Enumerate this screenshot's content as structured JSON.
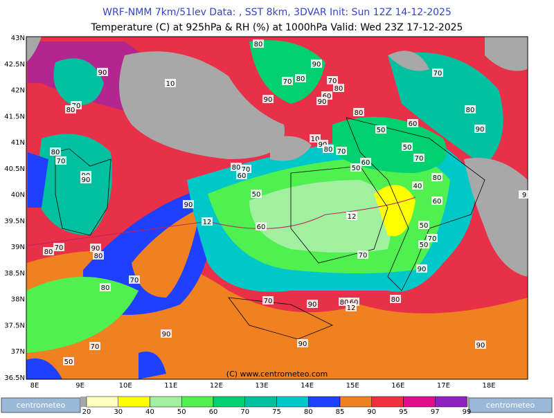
{
  "header": {
    "line1": "WRF-NMM 7km/51lev   Data: , SST 8km, 3DVAR   Init: Sun 12Z 14-12-2025",
    "line2": "Temperature (C) at 925hPa & RH (%) at 1000hPa  Valid: Wed 23Z 17-12-2025"
  },
  "map": {
    "lat_labels": [
      "43N",
      "42.5N",
      "42N",
      "41.5N",
      "41N",
      "40.5N",
      "40N",
      "39.5N",
      "39N",
      "38.5N",
      "38N",
      "37.5N",
      "37N",
      "36.5N"
    ],
    "lon_labels": [
      "8E",
      "9E",
      "10E",
      "11E",
      "12E",
      "13E",
      "14E",
      "15E",
      "16E",
      "17E",
      "18E"
    ],
    "contour_labels": [
      "80",
      "90",
      "70",
      "80",
      "70",
      "90",
      "10",
      "70",
      "80",
      "60",
      "90",
      "90",
      "70",
      "80",
      "80",
      "80",
      "60",
      "50",
      "90",
      "10",
      "90",
      "80",
      "70",
      "80",
      "70",
      "50",
      "70",
      "60",
      "50",
      "80",
      "70",
      "60",
      "90",
      "90",
      "80",
      "40",
      "50",
      "60",
      "90",
      "12",
      "12",
      "60",
      "50",
      "70",
      "50",
      "70",
      "80",
      "90",
      "80",
      "70",
      "90",
      "70",
      "80",
      "70",
      "90",
      "80",
      "60",
      "12",
      "80",
      "90",
      "90",
      "70",
      "90",
      "50",
      "9"
    ]
  },
  "copyright": "(C) www.centrometeo.com",
  "logo_text": "centrometeo",
  "colorbar": {
    "ticks": [
      20,
      30,
      40,
      50,
      60,
      70,
      75,
      80,
      85,
      90,
      95,
      97,
      99
    ],
    "colors": [
      "#ffffc0",
      "#ffff00",
      "#a0f0a0",
      "#50f050",
      "#00d070",
      "#00c0a0",
      "#00c8c8",
      "#2040ff",
      "#f08020",
      "#f03040",
      "#e0108a",
      "#9020c0"
    ]
  }
}
